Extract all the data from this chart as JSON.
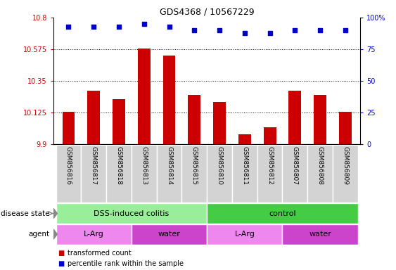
{
  "title": "GDS4368 / 10567229",
  "samples": [
    "GSM856816",
    "GSM856817",
    "GSM856818",
    "GSM856813",
    "GSM856814",
    "GSM856815",
    "GSM856810",
    "GSM856811",
    "GSM856812",
    "GSM856807",
    "GSM856808",
    "GSM856809"
  ],
  "bar_values": [
    10.13,
    10.28,
    10.22,
    10.58,
    10.53,
    10.25,
    10.2,
    9.97,
    10.02,
    10.28,
    10.25,
    10.13
  ],
  "percentile_values": [
    93,
    93,
    93,
    95,
    93,
    90,
    90,
    88,
    88,
    90,
    90,
    90
  ],
  "ylim_left": [
    9.9,
    10.8
  ],
  "ylim_right": [
    0,
    100
  ],
  "yticks_left": [
    9.9,
    10.125,
    10.35,
    10.575,
    10.8
  ],
  "yticks_right": [
    0,
    25,
    50,
    75,
    100
  ],
  "ytick_labels_left": [
    "9.9",
    "10.125",
    "10.35",
    "10.575",
    "10.8"
  ],
  "ytick_labels_right": [
    "0",
    "25",
    "50",
    "75",
    "100%"
  ],
  "bar_color": "#cc0000",
  "percentile_color": "#0000cc",
  "disease_state_groups": [
    {
      "label": "DSS-induced colitis",
      "start": 0,
      "end": 6,
      "color": "#99ee99"
    },
    {
      "label": "control",
      "start": 6,
      "end": 12,
      "color": "#44cc44"
    }
  ],
  "agent_groups": [
    {
      "label": "L-Arg",
      "start": 0,
      "end": 3,
      "color": "#ee88ee"
    },
    {
      "label": "water",
      "start": 3,
      "end": 6,
      "color": "#cc44cc"
    },
    {
      "label": "L-Arg",
      "start": 6,
      "end": 9,
      "color": "#ee88ee"
    },
    {
      "label": "water",
      "start": 9,
      "end": 12,
      "color": "#cc44cc"
    }
  ],
  "legend_items": [
    {
      "label": "transformed count",
      "color": "#cc0000"
    },
    {
      "label": "percentile rank within the sample",
      "color": "#0000cc"
    }
  ],
  "sample_bg_color": "#d3d3d3",
  "sample_border_color": "white"
}
